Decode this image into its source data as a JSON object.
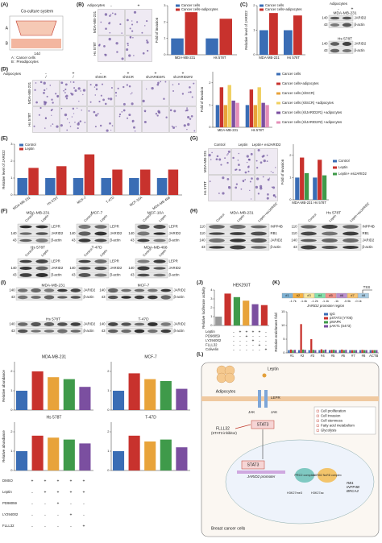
{
  "panels": {
    "A": {
      "label": "(A)",
      "title": "Co-culture system",
      "marks": [
        "A",
        "B"
      ],
      "time": "14d",
      "legend": [
        "A : Cancer cells",
        "B : Preadipocytes"
      ]
    },
    "B": {
      "label": "(B)",
      "treatment": "Adipocytes",
      "cols": [
        "-",
        "+"
      ],
      "rows": [
        "MDA-MB-231",
        "Hs 578T"
      ],
      "chart": {
        "type": "bar",
        "ylabel": "Fold of invasion",
        "categories": [
          "MDA-MB-231",
          "Hs 578T"
        ],
        "ylim": [
          0,
          3
        ],
        "yticks": [
          0,
          1,
          2,
          3
        ],
        "series": [
          {
            "name": "Cancer cells",
            "color": "#3a6db5",
            "values": [
              1,
              1
            ]
          },
          {
            "name": "Cancer cells+adipocytes",
            "color": "#c8322d",
            "values": [
              2.6,
              2.2
            ]
          }
        ]
      }
    },
    "C": {
      "label": "(C)",
      "chart": {
        "type": "bar",
        "ylabel": "Relative level of JARID2",
        "categories": [
          "MDA-MB-231",
          "Hs 578T"
        ],
        "ylim": [
          0,
          2
        ],
        "yticks": [
          0,
          1,
          2
        ],
        "series": [
          {
            "name": "Cancer cells",
            "color": "#3a6db5",
            "values": [
              1,
              1
            ]
          },
          {
            "name": "Cancer cells+adipocytes",
            "color": "#c8322d",
            "values": [
              1.7,
              1.6
            ]
          }
        ]
      },
      "treatment": "Adipocytes",
      "lanes": [
        "-",
        "+"
      ],
      "blots": [
        {
          "title": "MDA-MB-231",
          "rows": [
            {
              "mw": "140",
              "protein": "JARID2"
            },
            {
              "mw": "43",
              "protein": "β-actin"
            }
          ]
        },
        {
          "title": "Hs 578T",
          "rows": [
            {
              "mw": "140",
              "protein": "JARID2"
            },
            {
              "mw": "43",
              "protein": "β-actin"
            }
          ]
        }
      ]
    },
    "D": {
      "label": "(D)",
      "treatment": "Adipocytes",
      "signs": [
        "-",
        "+",
        "-",
        "+",
        "+",
        "+"
      ],
      "cols": [
        "/",
        "/",
        "shSCR",
        "shSCR",
        "shJARID2#1",
        "shJARID2#2"
      ],
      "rows": [
        "MDA-MB-231",
        "Hs 578T"
      ],
      "chart": {
        "type": "bar",
        "ylabel": "Fold of invasion",
        "categories": [
          "MDA-MB-231",
          "Hs 578T"
        ],
        "ylim": [
          0,
          2.5
        ],
        "yticks": [
          0,
          1,
          2
        ],
        "series": [
          {
            "name": "Cancer cells",
            "color": "#3a6db5",
            "values": [
              1,
              1
            ]
          },
          {
            "name": "Cancer cells+adipocytes",
            "color": "#c8322d",
            "values": [
              1.8,
              1.7
            ]
          },
          {
            "name": "Cancer cells (shSCR)",
            "color": "#e8a33a",
            "values": [
              1,
              1
            ]
          },
          {
            "name": "Cancer cells (shSCR) +adipocytes",
            "color": "#f0d060",
            "values": [
              1.9,
              1.8
            ]
          },
          {
            "name": "Cancer cells (shJARID2#1) +adipocytes",
            "color": "#7b4fa0",
            "values": [
              1.2,
              1.1
            ]
          },
          {
            "name": "Cancer cells (shJARID2#2) +adipocytes",
            "color": "#e58fb8",
            "values": [
              1.1,
              1.0
            ]
          }
        ]
      }
    },
    "E": {
      "label": "(E)",
      "chart": {
        "type": "bar",
        "ylabel": "Relative level of JARID2",
        "categories": [
          "MDA-MB-231",
          "Hs 578T",
          "MCF-7",
          "T-47D",
          "MCF-10A",
          "MDA-MB-468"
        ],
        "ylim": [
          0,
          3
        ],
        "yticks": [
          0,
          1,
          2,
          3
        ],
        "series": [
          {
            "name": "Control",
            "color": "#3a6db5",
            "values": [
              1,
              1,
              1,
              1,
              1,
              1
            ]
          },
          {
            "name": "Leptin",
            "color": "#c8322d",
            "values": [
              1.6,
              1.7,
              2.4,
              1.5,
              1.5,
              1.5
            ]
          }
        ]
      }
    },
    "G": {
      "label": "(G)",
      "cols": [
        "Control",
        "Leptin",
        "Leptin+ esiJARID2"
      ],
      "rows": [
        "MDA-MB-231",
        "Hs 578T"
      ],
      "chart": {
        "type": "bar",
        "ylabel": "Fold of invasion",
        "categories": [
          "MDA-MB-231",
          "Hs 578T"
        ],
        "ylim": [
          0,
          2.5
        ],
        "yticks": [
          0,
          1,
          2
        ],
        "series": [
          {
            "name": "Control",
            "color": "#3a6db5",
            "values": [
              1,
              1
            ]
          },
          {
            "name": "Leptin",
            "color": "#c8322d",
            "values": [
              1.9,
              1.8
            ]
          },
          {
            "name": "Leptin+ esiJARID2",
            "color": "#3f9a4a",
            "values": [
              1.2,
              1.1
            ]
          }
        ]
      }
    },
    "F": {
      "label": "(F)",
      "blots": [
        {
          "title": "MDA-MB-231",
          "lanes": [
            "Control",
            "Leptin"
          ],
          "rows": [
            {
              "protein": "LEPR"
            },
            {
              "mw": "140",
              "protein": "JARID2"
            },
            {
              "mw": "43",
              "protein": "β-actin"
            }
          ]
        },
        {
          "title": "MCF-7",
          "lanes": [
            "Control",
            "Leptin"
          ],
          "rows": [
            {
              "protein": "LEPR"
            },
            {
              "mw": "140",
              "protein": "JARID2"
            },
            {
              "mw": "43",
              "protein": "β-actin"
            }
          ]
        },
        {
          "title": "MCF-10A",
          "lanes": [
            "Control",
            "Leptin"
          ],
          "rows": [
            {
              "protein": "LEPR"
            },
            {
              "mw": "140",
              "protein": "JARID2"
            },
            {
              "mw": "43",
              "protein": "β-actin"
            }
          ]
        },
        {
          "title": "Hs 578T",
          "lanes": [
            "Control",
            "Leptin"
          ],
          "rows": [
            {
              "protein": "LEPR"
            },
            {
              "mw": "140",
              "protein": "JARID2"
            },
            {
              "mw": "43",
              "protein": "β-actin"
            }
          ]
        },
        {
          "title": "T-47D",
          "lanes": [
            "Control",
            "Leptin"
          ],
          "rows": [
            {
              "protein": "LEPR"
            },
            {
              "mw": "140",
              "protein": "JARID2"
            },
            {
              "mw": "43",
              "protein": "β-actin"
            }
          ]
        },
        {
          "title": "MDA-MB-468",
          "lanes": [
            "Control",
            "Leptin"
          ],
          "rows": [
            {
              "protein": "LEPR"
            },
            {
              "mw": "140",
              "protein": "JARID2"
            },
            {
              "mw": "43",
              "protein": "β-actin"
            }
          ]
        }
      ]
    },
    "H": {
      "label": "(H)",
      "blots": [
        {
          "title": "MDA-MB-231",
          "lanes": [
            "Control",
            "Leptin",
            "Leptin+esiJARID2"
          ],
          "rows": [
            {
              "mw": "110",
              "protein": "INPP4B"
            },
            {
              "mw": "110",
              "protein": "RB1"
            },
            {
              "mw": "140",
              "protein": "JARID2"
            },
            {
              "mw": "43",
              "protein": "β-actin"
            }
          ]
        },
        {
          "title": "Hs 578T",
          "lanes": [
            "Control",
            "Leptin",
            "Leptin+esiJARID2"
          ],
          "rows": [
            {
              "mw": "110",
              "protein": "INPP4B"
            },
            {
              "mw": "110",
              "protein": "RB1"
            },
            {
              "mw": "140",
              "protein": "JARID2"
            },
            {
              "mw": "43",
              "protein": "β-actin"
            }
          ]
        }
      ]
    },
    "I": {
      "label": "(I)",
      "blots": [
        {
          "title": "MDA-MB-231",
          "rows": [
            {
              "mw": "140",
              "protein": "JARID2"
            },
            {
              "mw": "43",
              "protein": "β-actin"
            }
          ]
        },
        {
          "title": "MCF-7",
          "rows": [
            {
              "mw": "140",
              "protein": "JARID2"
            },
            {
              "mw": "43",
              "protein": "β-actin"
            }
          ]
        },
        {
          "title": "Hs 578T",
          "rows": [
            {
              "mw": "140",
              "protein": "JARID2"
            },
            {
              "mw": "43",
              "protein": "β-actin"
            }
          ]
        },
        {
          "title": "T-47D",
          "rows": [
            {
              "mw": "140",
              "protein": "JARID2"
            },
            {
              "mw": "43",
              "protein": "β-actin"
            }
          ]
        }
      ],
      "charts": [
        {
          "type": "bar",
          "title": "MDA-MB-231",
          "ylabel": "Relative abundance",
          "ylim": [
            0,
            2.5
          ],
          "yticks": [
            0,
            1,
            2
          ],
          "values": [
            1,
            2.0,
            1.7,
            1.6,
            1.2
          ],
          "colors": [
            "#3a6db5",
            "#c8322d",
            "#e8a33a",
            "#3f9a4a",
            "#7b4fa0"
          ]
        },
        {
          "type": "bar",
          "title": "MCF-7",
          "ylim": [
            0,
            2.5
          ],
          "yticks": [
            0,
            1,
            2
          ],
          "values": [
            1,
            1.9,
            1.6,
            1.5,
            1.1
          ],
          "colors": [
            "#3a6db5",
            "#c8322d",
            "#e8a33a",
            "#3f9a4a",
            "#7b4fa0"
          ]
        },
        {
          "type": "bar",
          "title": "Hs 578T",
          "ylabel": "Relative abundance",
          "ylim": [
            0,
            2.5
          ],
          "yticks": [
            0,
            1,
            2
          ],
          "values": [
            1,
            1.8,
            1.7,
            1.6,
            1.4
          ],
          "colors": [
            "#3a6db5",
            "#c8322d",
            "#e8a33a",
            "#3f9a4a",
            "#7b4fa0"
          ]
        },
        {
          "type": "bar",
          "title": "T-47D",
          "ylim": [
            0,
            2.5
          ],
          "yticks": [
            0,
            1,
            2
          ],
          "values": [
            1,
            1.8,
            1.5,
            1.6,
            1.2
          ],
          "colors": [
            "#3a6db5",
            "#c8322d",
            "#e8a33a",
            "#3f9a4a",
            "#7b4fa0"
          ]
        }
      ],
      "treatments": [
        {
          "name": "DMSO",
          "signs": [
            "+",
            "+",
            "+",
            "+",
            "+"
          ]
        },
        {
          "name": "Leptin",
          "signs": [
            "-",
            "+",
            "+",
            "+",
            "+"
          ]
        },
        {
          "name": "PD98059",
          "signs": [
            "-",
            "-",
            "+",
            "-",
            "-"
          ]
        },
        {
          "name": "LY294002",
          "signs": [
            "-",
            "-",
            "-",
            "+",
            "-"
          ]
        },
        {
          "name": "FLLL32",
          "signs": [
            "-",
            "-",
            "-",
            "-",
            "+"
          ]
        }
      ]
    },
    "J": {
      "label": "(J)",
      "chart": {
        "type": "bar",
        "title": "HEK293T",
        "ylabel": "Relative luciferase activity",
        "ylim": [
          0,
          4
        ],
        "yticks": [
          0,
          1,
          2,
          3,
          4
        ],
        "values": [
          1,
          3.6,
          3.2,
          2.8,
          2.4,
          2.3
        ],
        "colors": [
          "#9a9a9a",
          "#c8322d",
          "#3f9a4a",
          "#e8a33a",
          "#7b4fa0",
          "#c8322d"
        ]
      },
      "treatments": [
        {
          "name": "Leptin",
          "signs": [
            "-",
            "+",
            "+",
            "+",
            "+",
            "-"
          ]
        },
        {
          "name": "PD98059",
          "signs": [
            "-",
            "-",
            "+",
            "-",
            "-",
            "-"
          ]
        },
        {
          "name": "LY294002",
          "signs": [
            "-",
            "-",
            "-",
            "+",
            "-",
            "-"
          ]
        },
        {
          "name": "FLLL32",
          "signs": [
            "-",
            "-",
            "-",
            "-",
            "+",
            "-"
          ]
        },
        {
          "name": "Colivelin",
          "signs": [
            "-",
            "-",
            "-",
            "-",
            "-",
            "+"
          ]
        }
      ]
    },
    "K": {
      "label": "(K)",
      "tss": "TSS",
      "sites": [
        "#1",
        "#2",
        "#3",
        "#4",
        "#5",
        "#6",
        "#7",
        "#8"
      ],
      "positions": [
        "-1.7k",
        "-1.4k",
        "-1.2k",
        "-1.1k",
        "-1k",
        "-0.5k",
        "-0.1k"
      ],
      "region": "JARID2 promoter region",
      "chart": {
        "type": "bar",
        "ylabel": "Relative enrichment fold",
        "categories": [
          "#1",
          "#2",
          "#3",
          "#4",
          "#5",
          "#6",
          "#7",
          "#8",
          "ACTB"
        ],
        "ylim": [
          0,
          15
        ],
        "yticks": [
          0,
          5,
          10,
          15
        ],
        "series": [
          {
            "name": "IgG",
            "color": "#3a6db5",
            "values": [
              1,
              1,
              1,
              1,
              1,
              1,
              1,
              1,
              1
            ]
          },
          {
            "name": "pSTAT3 (Y705)",
            "color": "#c8322d",
            "values": [
              1.2,
              10.5,
              5,
              1.3,
              1.1,
              1.2,
              1.0,
              1.1,
              1
            ]
          },
          {
            "name": "pMAPK",
            "color": "#3f9a4a",
            "values": [
              1,
              1.2,
              1.1,
              1,
              1.1,
              1,
              1,
              1,
              1
            ]
          },
          {
            "name": "pAKT1 (S473)",
            "color": "#7b4fa0",
            "values": [
              1.1,
              1.1,
              1,
              1.2,
              1,
              1.1,
              1,
              1,
              1
            ]
          }
        ]
      }
    },
    "L": {
      "label": "(L)",
      "adipocytes": "Adipocytes",
      "leptin": "Leptin",
      "lepr": "LEPR",
      "jak": [
        "JAK",
        "JAK"
      ],
      "stat3": "STAT3",
      "inhibitor": [
        "FLLL32",
        "(STAT3 inhibitor)"
      ],
      "stat3b": "STAT3",
      "promoter": "JARID2 promoter",
      "prc2": "PRC2 complex",
      "nurd": "JARID2 NuRD complex",
      "targets": [
        "RB1",
        "INPP4B",
        "BRCA2"
      ],
      "marks": [
        "H3K27me3",
        "H3K27ac"
      ],
      "cell": "Breast cancer cells",
      "effects": [
        "Cell proliferation",
        "Cell invasion",
        "Cell stemness",
        "Fatty acid metabolism",
        "Glycolysis"
      ]
    }
  }
}
